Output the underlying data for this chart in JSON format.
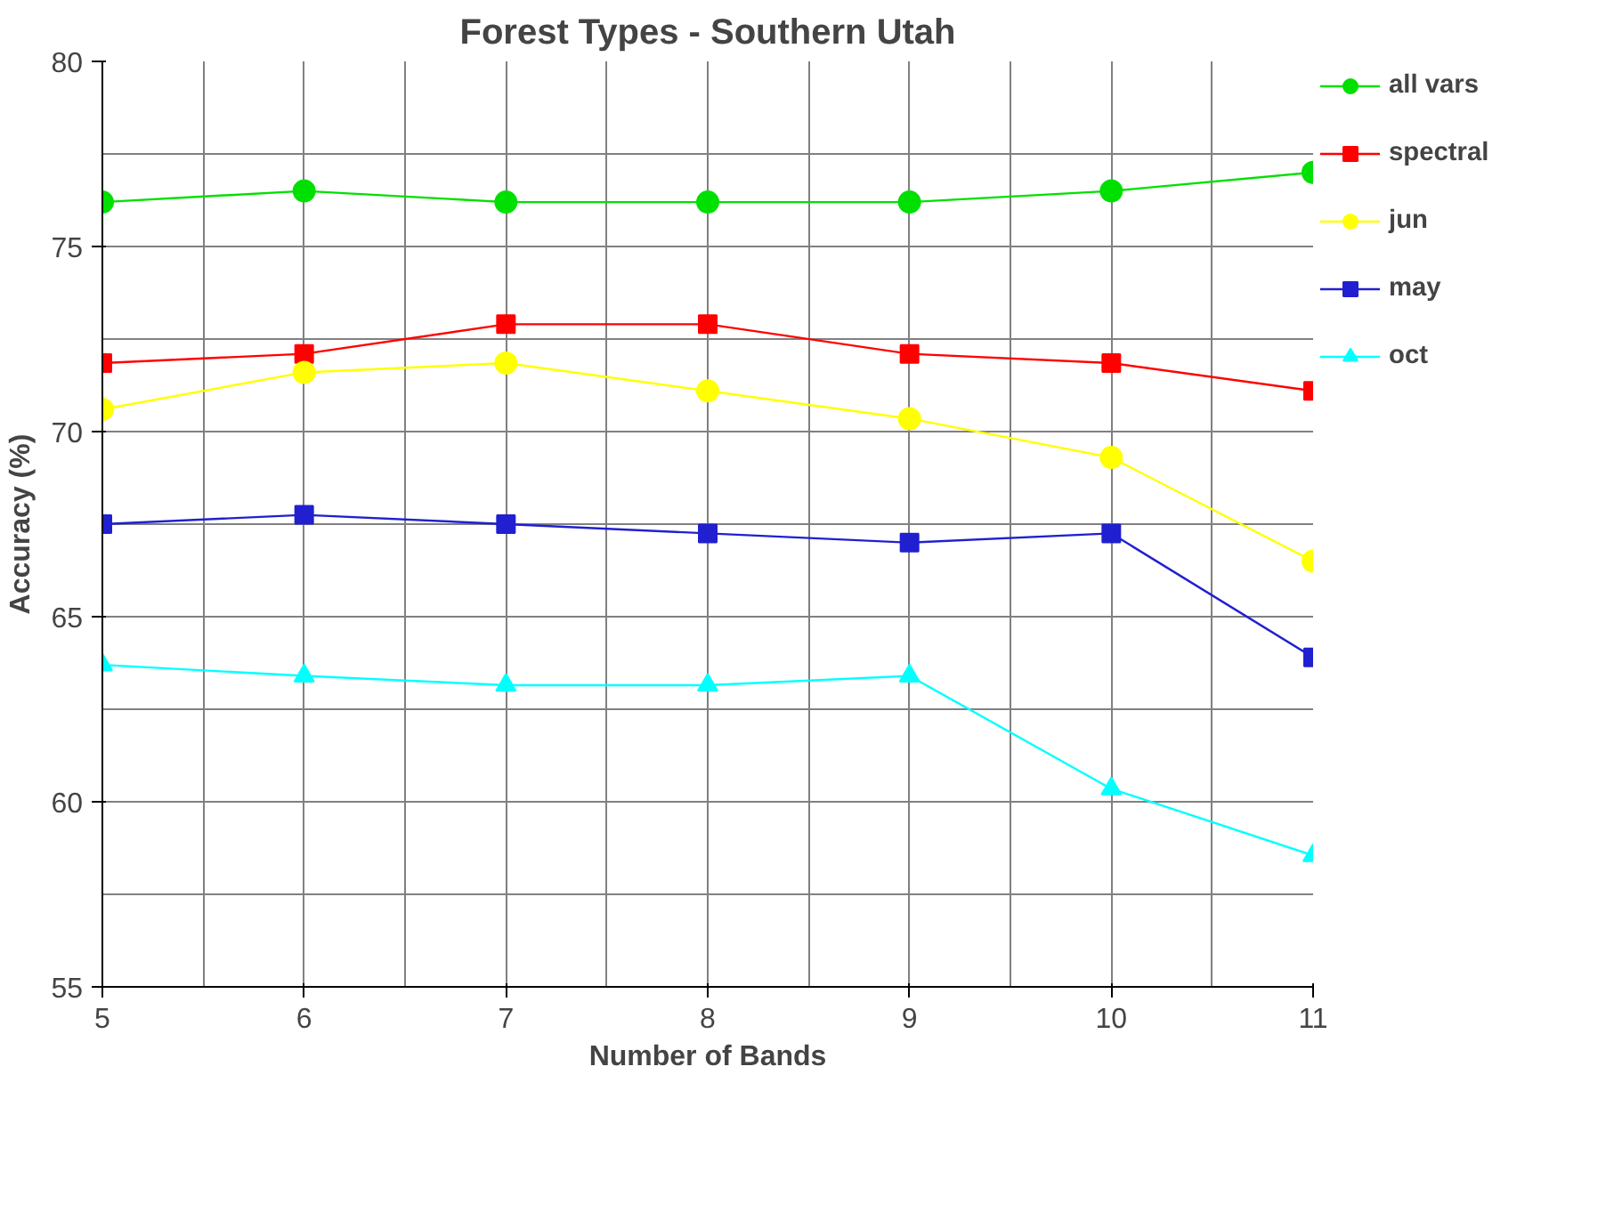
{
  "chart_data": {
    "type": "line",
    "title": "Forest Types - Southern Utah",
    "xlabel": "Number of Bands",
    "ylabel": "Accuracy (%)",
    "x": [
      5,
      6,
      7,
      8,
      9,
      10,
      11
    ],
    "series": [
      {
        "name": "all vars",
        "color": "#00e000",
        "marker": "circle",
        "values": [
          76.2,
          76.5,
          76.2,
          76.2,
          76.2,
          76.5,
          77.0
        ]
      },
      {
        "name": "spectral",
        "color": "#ff0000",
        "marker": "square",
        "values": [
          71.85,
          72.1,
          72.9,
          72.9,
          72.1,
          71.85,
          71.1
        ]
      },
      {
        "name": "jun",
        "color": "#ffff00",
        "marker": "circle",
        "values": [
          70.6,
          71.6,
          71.85,
          71.1,
          70.35,
          69.3,
          66.5
        ]
      },
      {
        "name": "may",
        "color": "#2020d0",
        "marker": "square",
        "values": [
          67.5,
          67.75,
          67.5,
          67.25,
          67.0,
          67.25,
          63.9
        ]
      },
      {
        "name": "oct",
        "color": "#00ffff",
        "marker": "triangle",
        "values": [
          63.7,
          63.4,
          63.15,
          63.15,
          63.4,
          60.35,
          58.55
        ]
      }
    ],
    "xlim": [
      5,
      11
    ],
    "ylim": [
      55,
      80
    ],
    "xticks": [
      5,
      6,
      7,
      8,
      9,
      10,
      11
    ],
    "yticks": [
      55,
      60,
      65,
      70,
      75,
      80
    ],
    "grid": true,
    "legend": "right",
    "line_style": "solid"
  }
}
